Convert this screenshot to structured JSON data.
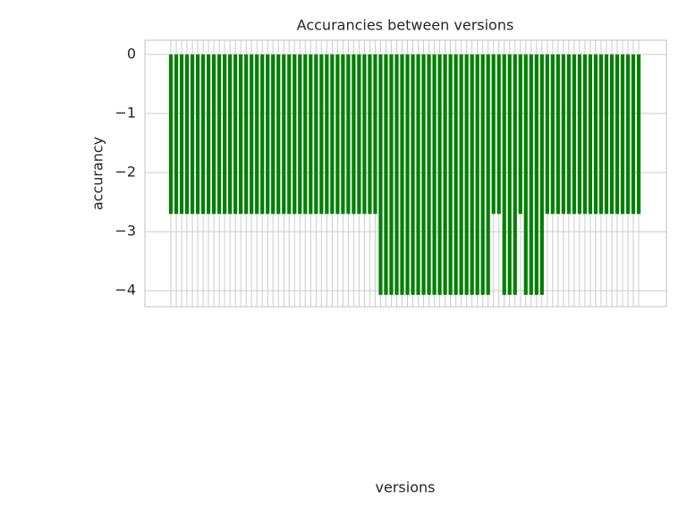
{
  "chart_data": {
    "type": "bar",
    "title": "Accurancies between versions",
    "xlabel": "versions",
    "ylabel": "accurancy",
    "categories": [
      null,
      null,
      null,
      null,
      null,
      null,
      null,
      null,
      null,
      null,
      null,
      null,
      null,
      null,
      null,
      null,
      null,
      null,
      null,
      null,
      null,
      null,
      null,
      null,
      null,
      null,
      null,
      null,
      null,
      null,
      null,
      null,
      null,
      null,
      null,
      null,
      null,
      null,
      null,
      null,
      null,
      null,
      null,
      null,
      null,
      null,
      null,
      null,
      null,
      null,
      null,
      null,
      null,
      null,
      null,
      null,
      null,
      null,
      null,
      null,
      null,
      null,
      null,
      null,
      null,
      null,
      null,
      null,
      null,
      null,
      null,
      null,
      null,
      null,
      null,
      null,
      null,
      null,
      null,
      null,
      null,
      null,
      null,
      null,
      null,
      null,
      null,
      null
    ],
    "values": [
      -2.7,
      -2.7,
      -2.7,
      -2.7,
      -2.7,
      -2.7,
      -2.7,
      -2.7,
      -2.7,
      -2.7,
      -2.7,
      -2.7,
      -2.7,
      -2.7,
      -2.7,
      -2.7,
      -2.7,
      -2.7,
      -2.7,
      -2.7,
      -2.7,
      -2.7,
      -2.7,
      -2.7,
      -2.7,
      -2.7,
      -2.7,
      -2.7,
      -2.7,
      -2.7,
      -2.7,
      -2.7,
      -2.7,
      -2.7,
      -2.7,
      -2.7,
      -2.7,
      -2.7,
      -2.7,
      -4.07,
      -4.07,
      -4.07,
      -4.07,
      -4.07,
      -4.07,
      -4.07,
      -4.07,
      -4.07,
      -4.07,
      -4.07,
      -4.07,
      -4.07,
      -4.07,
      -4.07,
      -4.07,
      -4.07,
      -4.07,
      -4.07,
      -4.07,
      -4.07,
      -2.7,
      -2.7,
      -4.07,
      -4.07,
      -4.07,
      -2.7,
      -4.07,
      -4.07,
      -4.07,
      -4.07,
      -2.7,
      -2.7,
      -2.7,
      -2.7,
      -2.7,
      -2.7,
      -2.7,
      -2.7,
      -2.7,
      -2.7,
      -2.7,
      -2.7,
      -2.7,
      -2.7,
      -2.7,
      -2.7,
      -2.7,
      -2.7
    ],
    "color": "#008000",
    "ylim": [
      -4.27,
      0.24
    ],
    "yticks": [
      {
        "value": 0,
        "label": "0"
      },
      {
        "value": -1,
        "label": "−1"
      },
      {
        "value": -2,
        "label": "−2"
      },
      {
        "value": -3,
        "label": "−3"
      },
      {
        "value": -4,
        "label": "−4"
      }
    ],
    "grid": true
  }
}
